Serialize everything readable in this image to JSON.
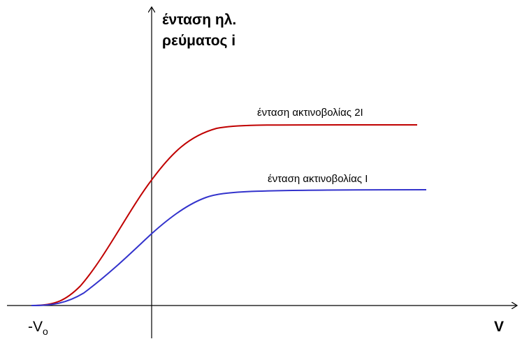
{
  "y_axis_label": [
    "ένταση ηλ.",
    "ρεύματος i"
  ],
  "x_axis_label": "V",
  "curves": [
    {
      "label": "ένταση ακτινοβολίας 2I"
    },
    {
      "label": "ένταση ακτινοβολίας I"
    }
  ],
  "stopping_voltage": {
    "label": "-V",
    "subscript": "o"
  }
}
